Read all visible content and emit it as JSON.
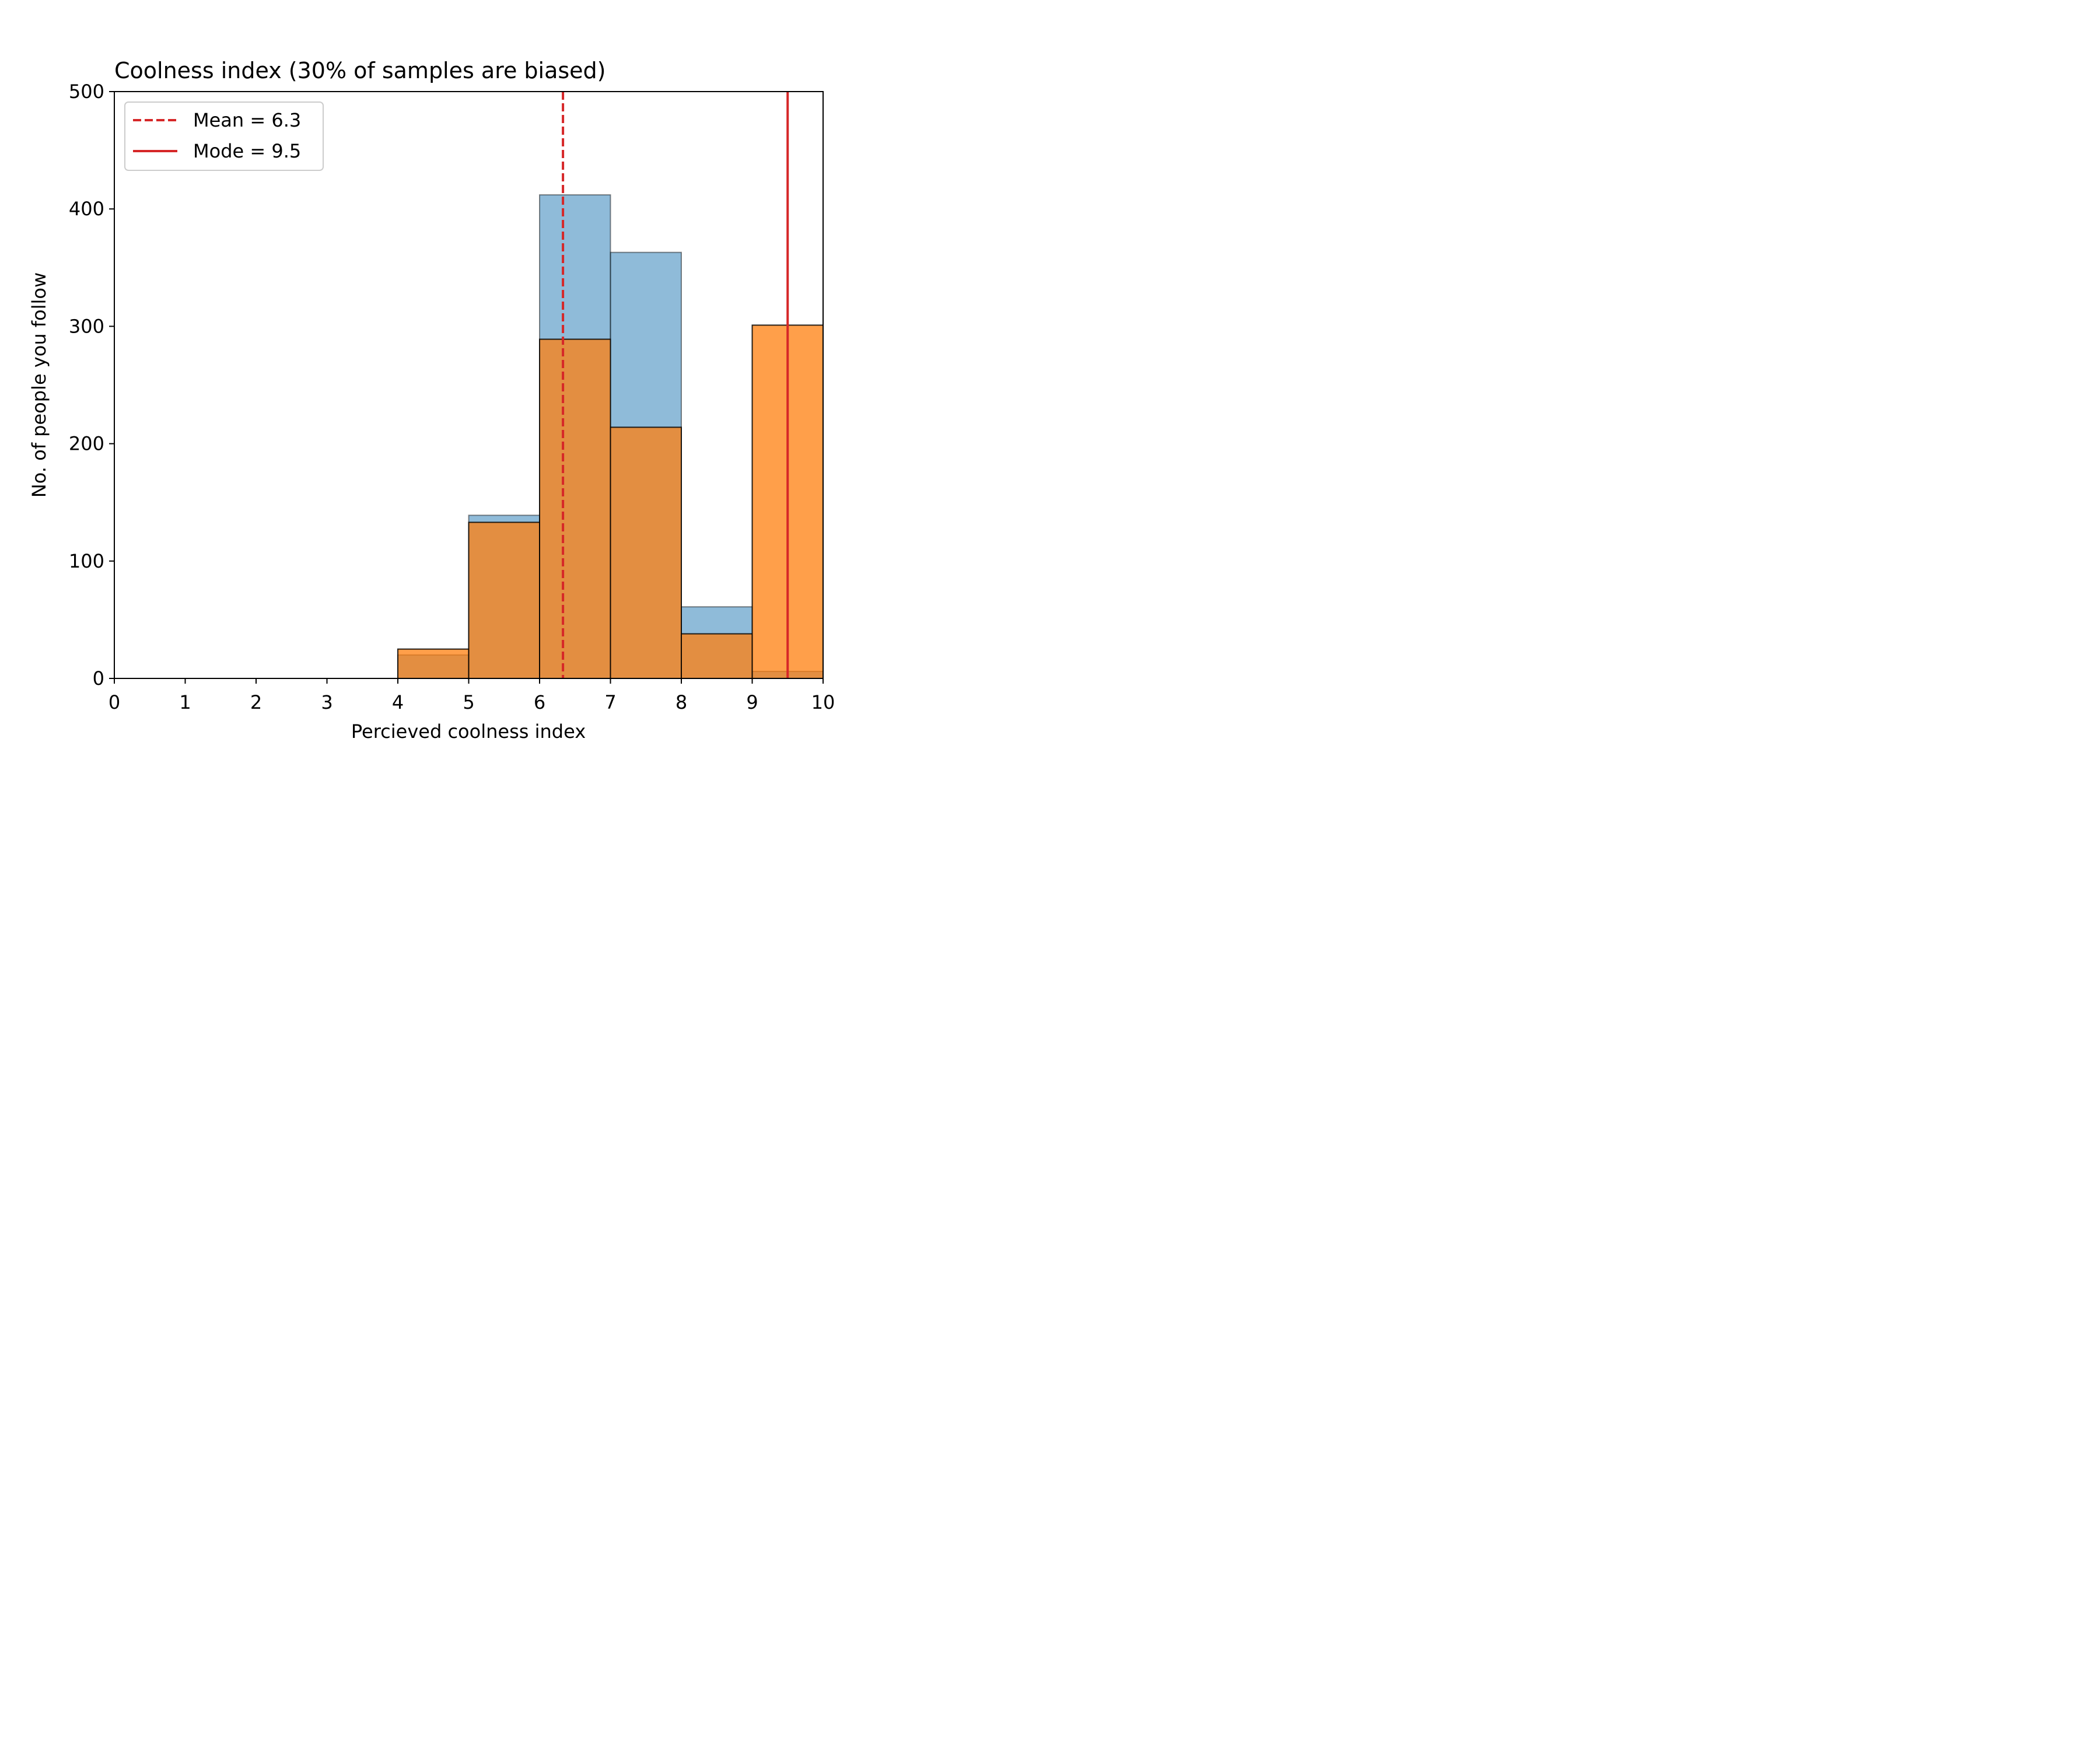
{
  "chart_data": {
    "type": "bar",
    "title": "Coolness index (30% of samples are biased)",
    "xlabel": "Percieved coolness index",
    "ylabel": "No. of people you follow",
    "xlim": [
      0,
      10
    ],
    "ylim": [
      0,
      500
    ],
    "xticks": [
      0,
      1,
      2,
      3,
      4,
      5,
      6,
      7,
      8,
      9,
      10
    ],
    "yticks": [
      0,
      100,
      200,
      300,
      400,
      500
    ],
    "xtick_labels": [
      "0",
      "1",
      "2",
      "3",
      "4",
      "5",
      "6",
      "7",
      "8",
      "9",
      "10"
    ],
    "ytick_labels": [
      "0",
      "100",
      "200",
      "300",
      "400",
      "500"
    ],
    "bin_edges": [
      4,
      5,
      6,
      7,
      8,
      9,
      10
    ],
    "series": [
      {
        "key": "unbiased",
        "color": "#1f77b4",
        "alpha": 0.5,
        "values": [
          20,
          139,
          412,
          363,
          61,
          6
        ]
      },
      {
        "key": "biased",
        "color": "#ff7f0e",
        "alpha": 0.75,
        "values": [
          25,
          133,
          289,
          214,
          38,
          301
        ]
      }
    ],
    "reference_lines": [
      {
        "key": "mean",
        "label": "Mean = 6.3",
        "x": 6.33,
        "color": "#d62728",
        "style": "dashed"
      },
      {
        "key": "mode",
        "label": "Mode = 9.5",
        "x": 9.5,
        "color": "#d62728",
        "style": "solid"
      }
    ],
    "legend": {
      "placement": "top-left",
      "entries": [
        "Mean = 6.3",
        "Mode = 9.5"
      ]
    },
    "grid": false
  }
}
